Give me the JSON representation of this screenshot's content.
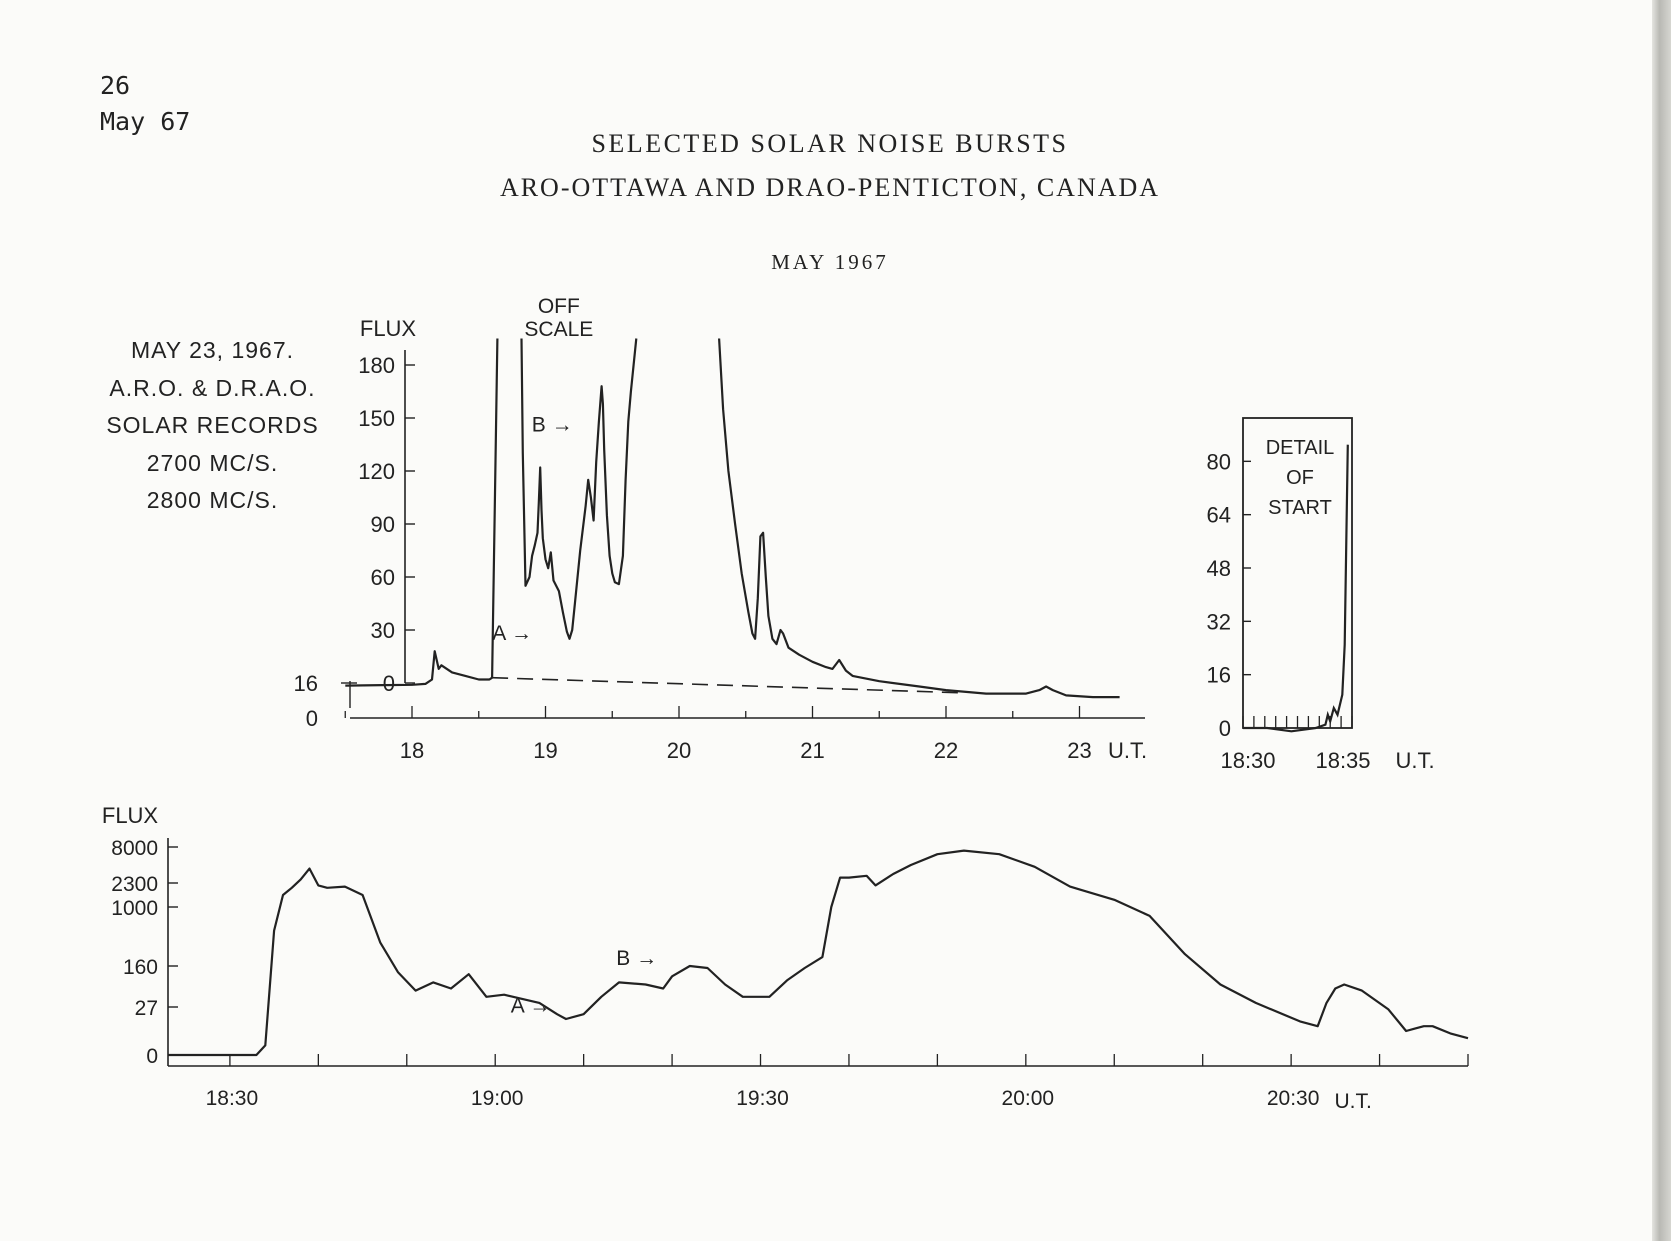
{
  "page_header": {
    "number": "26",
    "issue": "May 67"
  },
  "title": {
    "line1": "SELECTED SOLAR NOISE BURSTS",
    "line2": "ARO-OTTAWA AND DRAO-PENTICTON, CANADA",
    "month": "MAY 1967"
  },
  "record_caption": {
    "lines": [
      "MAY 23, 1967.",
      "A.R.O. & D.R.A.O.",
      "SOLAR RECORDS",
      "2700 MC/S.",
      "2800 MC/S."
    ]
  },
  "colors": {
    "ink": "#222222",
    "paper": "#fbfbf9"
  },
  "chart_data": [
    {
      "id": "main-record",
      "type": "line",
      "ylabel": "FLUX",
      "xlabel": "U.T.",
      "ylim": [
        0,
        180
      ],
      "yticks": [
        0,
        30,
        60,
        90,
        120,
        150,
        180
      ],
      "offset_axis": {
        "ticks": [
          0,
          16
        ]
      },
      "xlim": [
        17.5,
        23.4
      ],
      "xticks": [
        18,
        19,
        20,
        21,
        22,
        23
      ],
      "x_tick_labels": [
        "18",
        "19",
        "20",
        "21",
        "22",
        "23"
      ],
      "x_unit_label": "U.T.",
      "annotations": [
        {
          "text": "OFF",
          "x": 19.1,
          "y": 214
        },
        {
          "text": "SCALE",
          "x": 19.1,
          "y": 201
        },
        {
          "text": "B →",
          "x": 19.05,
          "y": 147
        },
        {
          "text": "A →",
          "x": 18.75,
          "y": 29
        }
      ],
      "series": [
        {
          "segments": [
            [
              [
                17.5,
                -1.5
              ],
              [
                17.8,
                -1.2
              ],
              [
                18.0,
                -1.0
              ],
              [
                18.1,
                -0.5
              ],
              [
                18.15,
                2
              ],
              [
                18.17,
                18
              ],
              [
                18.2,
                8
              ],
              [
                18.22,
                10
              ],
              [
                18.3,
                6
              ],
              [
                18.4,
                4
              ],
              [
                18.5,
                2
              ],
              [
                18.58,
                2
              ],
              [
                18.6,
                3
              ],
              [
                18.62,
                100
              ],
              [
                18.64,
                195
              ]
            ],
            [
              [
                18.82,
                195
              ],
              [
                18.83,
                130
              ],
              [
                18.85,
                55
              ],
              [
                18.88,
                60
              ],
              [
                18.9,
                72
              ],
              [
                18.92,
                78
              ],
              [
                18.94,
                85
              ],
              [
                18.95,
                102
              ],
              [
                18.96,
                122
              ],
              [
                18.97,
                98
              ],
              [
                18.98,
                82
              ],
              [
                19.0,
                70
              ],
              [
                19.02,
                65
              ],
              [
                19.04,
                74
              ],
              [
                19.06,
                58
              ],
              [
                19.1,
                52
              ],
              [
                19.13,
                40
              ],
              [
                19.16,
                29
              ],
              [
                19.18,
                25
              ],
              [
                19.2,
                30
              ],
              [
                19.22,
                45
              ],
              [
                19.26,
                75
              ],
              [
                19.3,
                100
              ],
              [
                19.32,
                115
              ],
              [
                19.34,
                105
              ],
              [
                19.36,
                92
              ],
              [
                19.38,
                125
              ],
              [
                19.4,
                148
              ],
              [
                19.42,
                168
              ],
              [
                19.43,
                158
              ],
              [
                19.44,
                132
              ],
              [
                19.46,
                95
              ],
              [
                19.48,
                72
              ],
              [
                19.5,
                62
              ],
              [
                19.52,
                57
              ],
              [
                19.55,
                56
              ],
              [
                19.58,
                72
              ],
              [
                19.6,
                115
              ],
              [
                19.62,
                148
              ],
              [
                19.64,
                165
              ],
              [
                19.66,
                180
              ],
              [
                19.68,
                195
              ]
            ],
            [
              [
                20.3,
                195
              ],
              [
                20.33,
                155
              ],
              [
                20.37,
                120
              ],
              [
                20.42,
                90
              ],
              [
                20.47,
                62
              ],
              [
                20.52,
                40
              ],
              [
                20.55,
                28
              ],
              [
                20.57,
                25
              ],
              [
                20.59,
                48
              ],
              [
                20.61,
                83
              ],
              [
                20.63,
                85
              ],
              [
                20.65,
                60
              ],
              [
                20.67,
                38
              ],
              [
                20.7,
                25
              ],
              [
                20.73,
                22
              ],
              [
                20.76,
                30
              ],
              [
                20.78,
                28
              ],
              [
                20.82,
                20
              ],
              [
                20.9,
                16
              ],
              [
                21.0,
                12
              ],
              [
                21.1,
                9
              ],
              [
                21.15,
                8
              ],
              [
                21.2,
                13
              ],
              [
                21.25,
                7
              ],
              [
                21.3,
                4
              ],
              [
                21.5,
                1
              ],
              [
                21.8,
                -2
              ],
              [
                22.0,
                -4
              ],
              [
                22.3,
                -6
              ],
              [
                22.6,
                -6
              ],
              [
                22.7,
                -4
              ],
              [
                22.75,
                -2
              ],
              [
                22.8,
                -4
              ],
              [
                22.9,
                -7
              ],
              [
                23.1,
                -8
              ],
              [
                23.3,
                -8
              ]
            ]
          ]
        }
      ],
      "baseline_dashed": [
        [
          18.6,
          3
        ],
        [
          22.1,
          -5.5
        ]
      ]
    },
    {
      "id": "detail-of-start",
      "type": "line",
      "inset_title": [
        "DETAIL",
        "OF",
        "START"
      ],
      "ylim": [
        0,
        90
      ],
      "yticks": [
        0,
        16,
        32,
        48,
        64,
        80
      ],
      "xlim": [
        18.5,
        18.59
      ],
      "x_tick_labels": [
        "18:30",
        "18:35"
      ],
      "x_unit_label": "U.T.",
      "series": [
        {
          "points": [
            [
              18.5,
              0
            ],
            [
              18.52,
              0
            ],
            [
              18.54,
              -1
            ],
            [
              18.56,
              0
            ],
            [
              18.568,
              1
            ],
            [
              18.57,
              4
            ],
            [
              18.572,
              2
            ],
            [
              18.575,
              6
            ],
            [
              18.578,
              4
            ],
            [
              18.58,
              7
            ],
            [
              18.582,
              10
            ],
            [
              18.584,
              25
            ],
            [
              18.5855,
              60
            ],
            [
              18.5865,
              85
            ]
          ]
        }
      ]
    },
    {
      "id": "lower-record",
      "type": "line",
      "ylabel": "FLUX",
      "yscale": "nonlinear",
      "yticks": [
        0,
        27,
        160,
        1000,
        2300,
        8000
      ],
      "xlim": [
        "18:23",
        "20:50"
      ],
      "x_tick_labels": [
        "18:30",
        "19:00",
        "19:30",
        "20:00",
        "20:30"
      ],
      "x_unit_label": "U.T.",
      "annotations": [
        {
          "text": "B →",
          "x": "19:16",
          "y_level": 2.15
        },
        {
          "text": "A →",
          "x": "19:04",
          "y_level": 1.06
        }
      ],
      "series": [
        {
          "points": [
            [
              "18:23",
              0
            ],
            [
              "18:33",
              0
            ],
            [
              "18:34",
              0.2
            ],
            [
              "18:35",
              2.6
            ],
            [
              "18:36",
              3.5
            ],
            [
              "18:37",
              3.8
            ],
            [
              "18:38",
              4.1
            ],
            [
              "18:39",
              4.4
            ],
            [
              "18:40",
              3.9
            ],
            [
              "18:41",
              3.8
            ],
            [
              "18:43",
              3.85
            ],
            [
              "18:45",
              3.5
            ],
            [
              "18:47",
              2.4
            ],
            [
              "18:49",
              1.85
            ],
            [
              "18:51",
              1.4
            ],
            [
              "18:53",
              1.6
            ],
            [
              "18:55",
              1.45
            ],
            [
              "18:57",
              1.8
            ],
            [
              "18:59",
              1.25
            ],
            [
              "19:01",
              1.3
            ],
            [
              "19:03",
              1.2
            ],
            [
              "19:05",
              1.1
            ],
            [
              "19:07",
              0.85
            ],
            [
              "19:08",
              0.75
            ],
            [
              "19:10",
              0.85
            ],
            [
              "19:12",
              1.25
            ],
            [
              "19:14",
              1.6
            ],
            [
              "19:17",
              1.55
            ],
            [
              "19:19",
              1.45
            ],
            [
              "19:20",
              1.75
            ],
            [
              "19:22",
              2.0
            ],
            [
              "19:24",
              1.95
            ],
            [
              "19:26",
              1.55
            ],
            [
              "19:28",
              1.25
            ],
            [
              "19:31",
              1.25
            ],
            [
              "19:33",
              1.65
            ],
            [
              "19:35",
              1.95
            ],
            [
              "19:37",
              2.15
            ],
            [
              "19:38",
              3.0
            ],
            [
              "19:39",
              4.15
            ],
            [
              "19:40",
              4.15
            ],
            [
              "19:42",
              4.2
            ],
            [
              "19:43",
              3.9
            ],
            [
              "19:45",
              4.25
            ],
            [
              "19:47",
              4.5
            ],
            [
              "19:50",
              4.8
            ],
            [
              "19:53",
              4.9
            ],
            [
              "19:57",
              4.8
            ],
            [
              "20:01",
              4.45
            ],
            [
              "20:05",
              3.85
            ],
            [
              "20:10",
              3.3
            ],
            [
              "20:14",
              2.85
            ],
            [
              "20:18",
              2.2
            ],
            [
              "20:22",
              1.55
            ],
            [
              "20:26",
              1.1
            ],
            [
              "20:31",
              0.7
            ],
            [
              "20:33",
              0.6
            ],
            [
              "20:34",
              1.1
            ],
            [
              "20:35",
              1.45
            ],
            [
              "20:36",
              1.55
            ],
            [
              "20:38",
              1.4
            ],
            [
              "20:41",
              0.95
            ],
            [
              "20:43",
              0.5
            ],
            [
              "20:44",
              0.55
            ],
            [
              "20:45",
              0.6
            ],
            [
              "20:46",
              0.6
            ],
            [
              "20:48",
              0.45
            ],
            [
              "20:50",
              0.35
            ]
          ]
        }
      ]
    }
  ]
}
